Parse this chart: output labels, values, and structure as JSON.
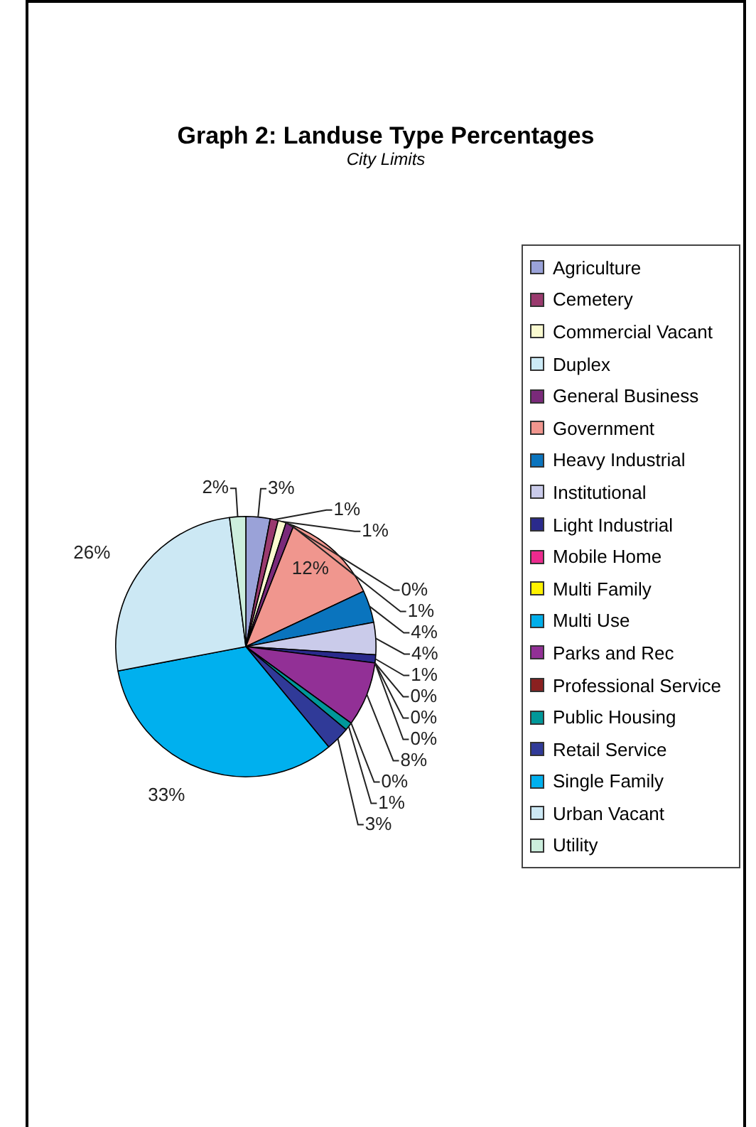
{
  "chart_data": {
    "type": "pie",
    "title": "Graph 2: Landuse Type Percentages",
    "subtitle": "City Limits",
    "categories": [
      "Agriculture",
      "Cemetery",
      "Commercial Vacant",
      "Duplex",
      "General Business",
      "Government",
      "Heavy Industrial",
      "Institutional",
      "Light Industrial",
      "Mobile Home",
      "Multi Family",
      "Multi Use",
      "Parks and Rec",
      "Professional Service",
      "Public Housing",
      "Retail Service",
      "Single Family",
      "Urban Vacant",
      "Utility"
    ],
    "values": [
      3,
      1,
      1,
      0,
      1,
      12,
      4,
      4,
      1,
      0,
      0,
      0,
      8,
      0,
      1,
      3,
      33,
      26,
      2
    ],
    "value_labels": [
      "3%",
      "1%",
      "1%",
      "0%",
      "1%",
      "12%",
      "4%",
      "4%",
      "1%",
      "0%",
      "0%",
      "0%",
      "8%",
      "0%",
      "1%",
      "3%",
      "33%",
      "26%",
      "2%"
    ],
    "colors": [
      "#9aa2d8",
      "#9a3a6e",
      "#fafad0",
      "#cceaf6",
      "#7a2a7a",
      "#f0968e",
      "#0a74be",
      "#cacbea",
      "#2a2a8c",
      "#ec2a8e",
      "#fff200",
      "#00aeea",
      "#923096",
      "#8a2020",
      "#00989a",
      "#303a98",
      "#00b0ee",
      "#cce8f4",
      "#cceedd"
    ],
    "legend": "right"
  }
}
